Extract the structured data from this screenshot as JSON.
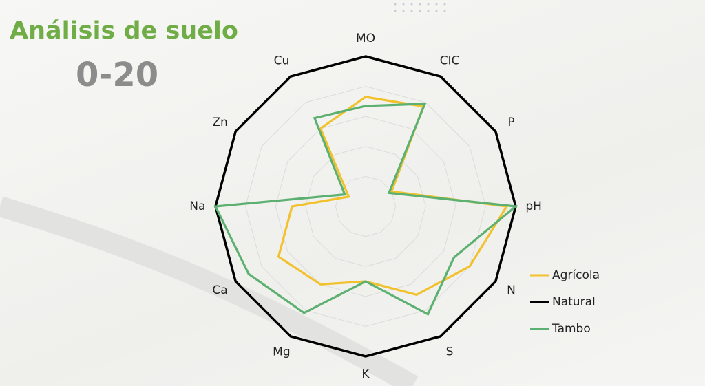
{
  "chart_data": {
    "type": "radar",
    "title": "Análisis de suelo",
    "subtitle": "0-20",
    "categories": [
      "MO",
      "CIC",
      "P",
      "pH",
      "N",
      "S",
      "K",
      "Mg",
      "Ca",
      "Na",
      "Zn",
      "Cu"
    ],
    "series": [
      {
        "name": "Agrícola",
        "color": "#f2c12e",
        "values": [
          0.73,
          0.77,
          0.2,
          0.94,
          0.8,
          0.68,
          0.5,
          0.6,
          0.67,
          0.49,
          0.13,
          0.6
        ]
      },
      {
        "name": "Natural",
        "color": "#000000",
        "values": [
          1,
          1,
          1,
          1,
          1,
          1,
          1,
          1,
          1,
          1,
          1,
          1
        ]
      },
      {
        "name": "Tambo",
        "color": "#5cb070",
        "values": [
          0.67,
          0.79,
          0.18,
          1,
          0.68,
          0.83,
          0.5,
          0.82,
          0.9,
          1,
          0.16,
          0.68
        ]
      }
    ],
    "ylim": [
      0,
      1
    ],
    "yticks": [
      0.2,
      0.4,
      0.6,
      0.8,
      1
    ],
    "grid": true,
    "legend": "right"
  }
}
